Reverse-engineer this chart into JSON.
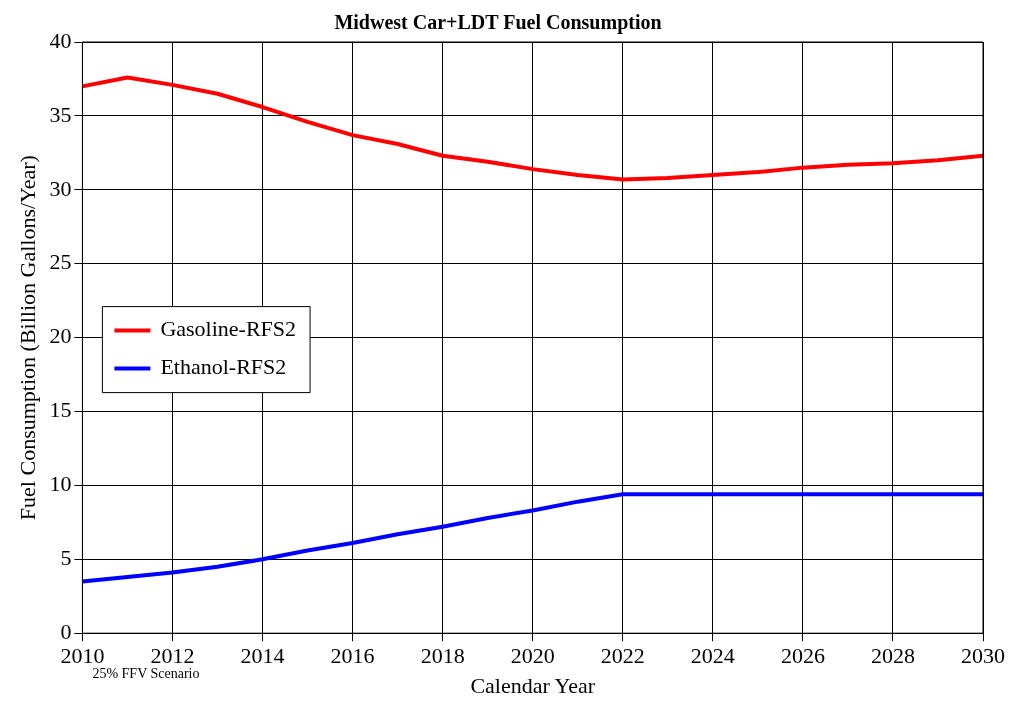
{
  "chart_data": {
    "type": "line",
    "title": "Midwest Car+LDT Fuel Consumption",
    "xlabel": "Calendar Year",
    "ylabel": "Fuel Consumption (Billion Gallons/Year)",
    "x": [
      2010,
      2011,
      2012,
      2013,
      2014,
      2015,
      2016,
      2017,
      2018,
      2019,
      2020,
      2021,
      2022,
      2023,
      2024,
      2025,
      2026,
      2027,
      2028,
      2029,
      2030
    ],
    "series": [
      {
        "name": "Gasoline-RFS2",
        "color": "#ff0000",
        "values": [
          37.0,
          37.6,
          37.1,
          36.5,
          35.6,
          34.6,
          33.7,
          33.1,
          32.3,
          31.9,
          31.4,
          31.0,
          30.7,
          30.8,
          31.0,
          31.2,
          31.5,
          31.7,
          31.8,
          32.0,
          32.3
        ]
      },
      {
        "name": "Ethanol-RFS2",
        "color": "#0000ff",
        "values": [
          3.5,
          3.8,
          4.1,
          4.5,
          5.0,
          5.6,
          6.1,
          6.7,
          7.2,
          7.8,
          8.3,
          8.9,
          9.4,
          9.4,
          9.4,
          9.4,
          9.4,
          9.4,
          9.4,
          9.4,
          9.4
        ]
      }
    ],
    "xlim": [
      2010,
      2030
    ],
    "xticks": [
      2010,
      2012,
      2014,
      2016,
      2018,
      2020,
      2022,
      2024,
      2026,
      2028,
      2030
    ],
    "ylim": [
      0,
      40
    ],
    "yticks": [
      0,
      5,
      10,
      15,
      20,
      25,
      30,
      35,
      40
    ],
    "grid": true,
    "legend": "center left",
    "marker": "none",
    "line_style": "solid",
    "annotations": [
      "25% FFV Scenario"
    ]
  }
}
